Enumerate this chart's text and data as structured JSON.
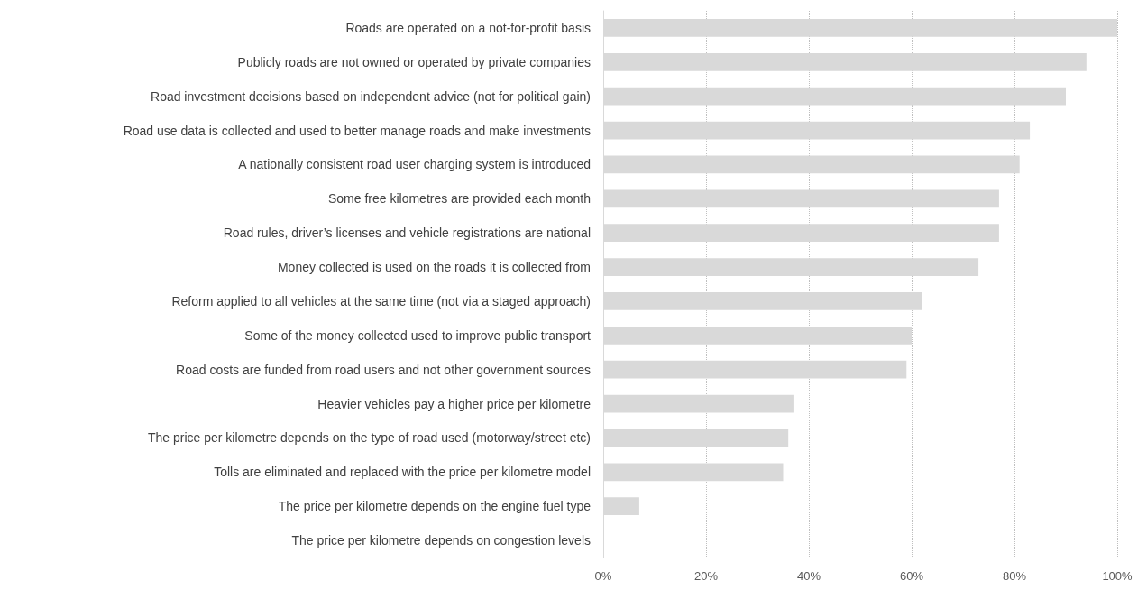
{
  "chart_data": {
    "type": "bar",
    "orientation": "horizontal",
    "categories": [
      "Roads are operated on a not-for-profit basis",
      "Publicly roads are not owned or operated by private companies",
      "Road investment decisions based on independent advice (not for political gain)",
      "Road use data is collected and used to better manage roads and make investments",
      "A nationally consistent road user charging system is introduced",
      "Some free kilometres are provided each month",
      "Road rules, driver’s licenses and vehicle registrations are national",
      "Money collected is used on the roads it is collected from",
      "Reform applied to all vehicles at the same time (not via a staged approach)",
      "Some of the money collected used to improve public transport",
      "Road costs are funded from road users and not other government sources",
      "Heavier vehicles pay a higher price per kilometre",
      "The price per kilometre depends on the type of road used (motorway/street etc)",
      "Tolls are eliminated and replaced with the price per kilometre model",
      "The price per kilometre depends on the engine fuel type",
      "The price per kilometre depends on congestion levels"
    ],
    "values": [
      100,
      94,
      90,
      83,
      81,
      77,
      77,
      73,
      62,
      60,
      59,
      37,
      36,
      35,
      7,
      0
    ],
    "color": "#d9d9d9",
    "xlim": [
      0,
      100
    ],
    "xticks": [
      {
        "value": 0,
        "label": "0%"
      },
      {
        "value": 20,
        "label": "20%"
      },
      {
        "value": 40,
        "label": "40%"
      },
      {
        "value": 60,
        "label": "60%"
      },
      {
        "value": 80,
        "label": "80%"
      },
      {
        "value": 100,
        "label": "100%"
      }
    ],
    "grid": "x"
  }
}
